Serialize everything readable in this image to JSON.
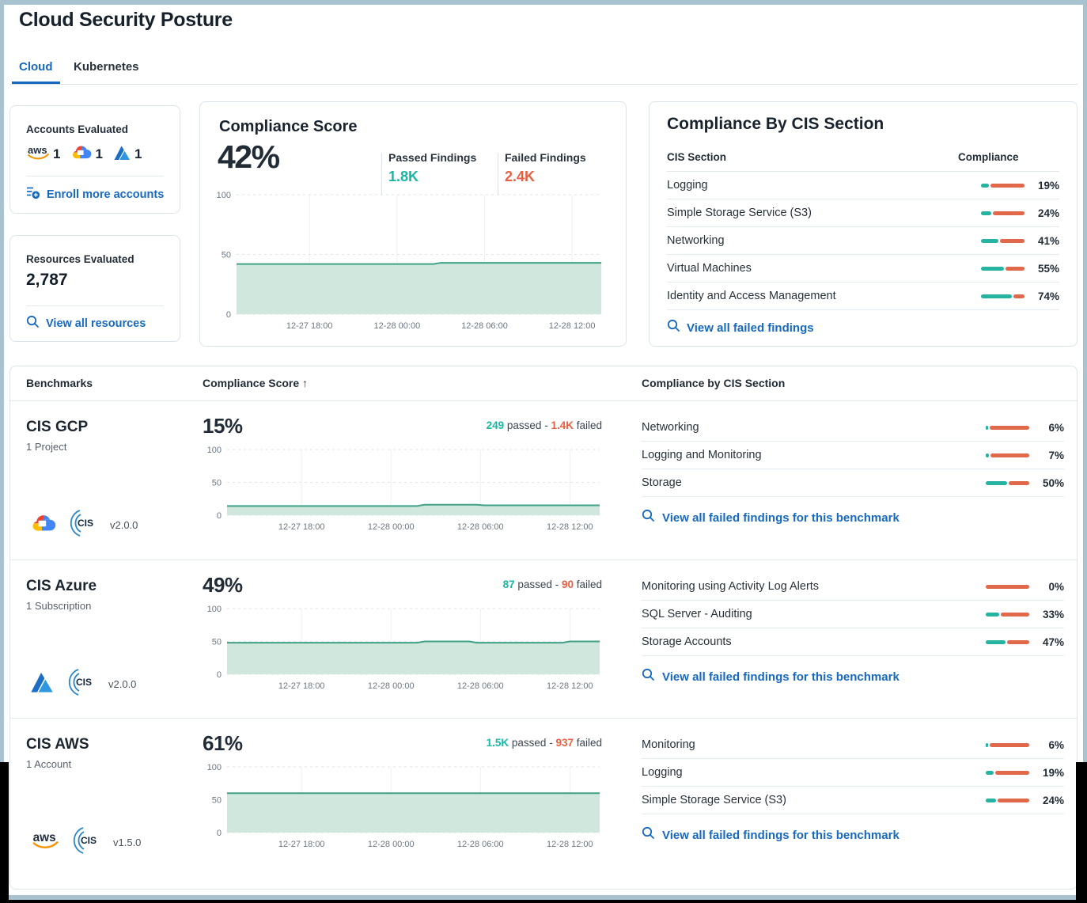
{
  "header": {
    "title": "Cloud Security Posture"
  },
  "tabs": {
    "cloud": "Cloud",
    "kubernetes": "Kubernetes"
  },
  "accounts_card": {
    "title": "Accounts Evaluated",
    "aws_count": "1",
    "gcp_count": "1",
    "azure_count": "1",
    "enroll_link": "Enroll more accounts"
  },
  "resources_card": {
    "title": "Resources Evaluated",
    "value": "2,787",
    "view_link": "View all resources"
  },
  "score_card": {
    "title": "Compliance Score",
    "score": "42%",
    "passed_label": "Passed Findings",
    "passed_value": "1.8K",
    "failed_label": "Failed Findings",
    "failed_value": "2.4K"
  },
  "cis_card": {
    "title": "Compliance By CIS Section",
    "col_section": "CIS Section",
    "col_compliance": "Compliance",
    "link": "View all failed findings",
    "rows": [
      {
        "name": "Logging",
        "pct": 19,
        "pct_label": "19%"
      },
      {
        "name": "Simple Storage Service (S3)",
        "pct": 24,
        "pct_label": "24%"
      },
      {
        "name": "Networking",
        "pct": 41,
        "pct_label": "41%"
      },
      {
        "name": "Virtual Machines",
        "pct": 55,
        "pct_label": "55%"
      },
      {
        "name": "Identity and Access Management",
        "pct": 74,
        "pct_label": "74%"
      }
    ]
  },
  "benchmarks": {
    "col_benchmarks": "Benchmarks",
    "col_score": "Compliance Score",
    "sort_indicator": "↑",
    "col_sections": "Compliance by CIS Section",
    "rows": [
      {
        "name": "CIS GCP",
        "scope": "1 Project",
        "version": "v2.0.0",
        "provider": "gcp",
        "score": "15%",
        "passed": "249",
        "sep": " passed - ",
        "failed": "1.4K",
        "suffix": " failed",
        "link": "View all failed findings for this benchmark",
        "sections": [
          {
            "name": "Networking",
            "pct": 6,
            "pct_label": "6%"
          },
          {
            "name": "Logging and Monitoring",
            "pct": 7,
            "pct_label": "7%"
          },
          {
            "name": "Storage",
            "pct": 50,
            "pct_label": "50%"
          }
        ]
      },
      {
        "name": "CIS Azure",
        "scope": "1 Subscription",
        "version": "v2.0.0",
        "provider": "azure",
        "score": "49%",
        "passed": "87",
        "sep": " passed - ",
        "failed": "90",
        "suffix": " failed",
        "link": "View all failed findings for this benchmark",
        "sections": [
          {
            "name": "Monitoring using Activity Log Alerts",
            "pct": 0,
            "pct_label": "0%"
          },
          {
            "name": "SQL Server - Auditing",
            "pct": 33,
            "pct_label": "33%"
          },
          {
            "name": "Storage Accounts",
            "pct": 47,
            "pct_label": "47%"
          }
        ]
      },
      {
        "name": "CIS AWS",
        "scope": "1 Account",
        "version": "v1.5.0",
        "provider": "aws",
        "score": "61%",
        "passed": "1.5K",
        "sep": " passed - ",
        "failed": "937",
        "suffix": " failed",
        "link": "View all failed findings for this benchmark",
        "sections": [
          {
            "name": "Monitoring",
            "pct": 6,
            "pct_label": "6%"
          },
          {
            "name": "Logging",
            "pct": 19,
            "pct_label": "19%"
          },
          {
            "name": "Simple Storage Service (S3)",
            "pct": 24,
            "pct_label": "24%"
          }
        ]
      }
    ]
  },
  "chart_data": [
    {
      "id": "overall",
      "type": "area",
      "title": "Overall compliance score over time",
      "ylim": [
        0,
        100
      ],
      "yticks": [
        100,
        50,
        0
      ],
      "xlabels": [
        "12-27 18:00",
        "12-28 00:00",
        "12-28 06:00",
        "12-28 12:00"
      ],
      "points": [
        [
          0,
          42
        ],
        [
          0.54,
          42
        ],
        [
          0.56,
          43
        ],
        [
          1,
          43
        ]
      ]
    },
    {
      "id": "gcp",
      "type": "area",
      "title": "CIS GCP compliance score over time",
      "ylim": [
        0,
        100
      ],
      "yticks": [
        100,
        50,
        0
      ],
      "xlabels": [
        "12-27 18:00",
        "12-28 00:00",
        "12-28 06:00",
        "12-28 12:00"
      ],
      "points": [
        [
          0,
          14
        ],
        [
          0.51,
          14
        ],
        [
          0.53,
          16
        ],
        [
          0.67,
          16
        ],
        [
          0.69,
          15
        ],
        [
          1,
          15
        ]
      ]
    },
    {
      "id": "azure",
      "type": "area",
      "title": "CIS Azure compliance score over time",
      "ylim": [
        0,
        100
      ],
      "yticks": [
        100,
        50,
        0
      ],
      "xlabels": [
        "12-27 18:00",
        "12-28 00:00",
        "12-28 06:00",
        "12-28 12:00"
      ],
      "points": [
        [
          0,
          48
        ],
        [
          0.51,
          48
        ],
        [
          0.53,
          50
        ],
        [
          0.65,
          50
        ],
        [
          0.67,
          48
        ],
        [
          0.9,
          48
        ],
        [
          0.92,
          50
        ],
        [
          1,
          50
        ]
      ]
    },
    {
      "id": "aws",
      "type": "area",
      "title": "CIS AWS compliance score over time",
      "ylim": [
        0,
        100
      ],
      "yticks": [
        100,
        50,
        0
      ],
      "xlabels": [
        "12-27 18:00",
        "12-28 00:00",
        "12-28 06:00",
        "12-28 12:00"
      ],
      "points": [
        [
          0,
          60
        ],
        [
          1,
          60
        ]
      ]
    }
  ],
  "colors": {
    "accent_blue": "#1769c0",
    "teal": "#26b3a2",
    "red": "#e0684b",
    "chart_line": "#3fa286",
    "chart_fill": "#cfe7dd"
  }
}
